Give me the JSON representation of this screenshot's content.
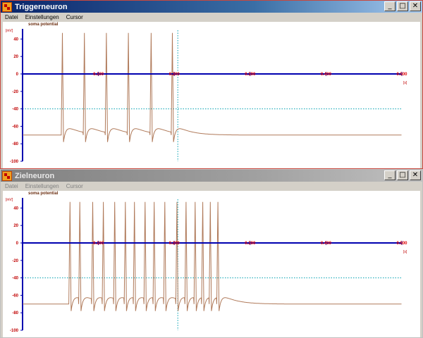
{
  "colors": {
    "trace": "#b07a5a",
    "axis": "#0000b0",
    "guide": "#00a0b0",
    "tick_text": "#d00000"
  },
  "menu": {
    "datei": "Datei",
    "einstellungen": "Einstellungen",
    "cursor": "Cursor"
  },
  "window_controls": {
    "minimize": "_",
    "maximize": "□",
    "close": "✕"
  },
  "windows": [
    {
      "title": "Triggerneuron",
      "active": true,
      "chart_data": {
        "type": "line",
        "series_label": "soma potential",
        "ylabel": "[mV]",
        "xlabel": "[s]",
        "y_ticks": [
          "40",
          "20",
          "0",
          "-20",
          "-40",
          "-60",
          "-80",
          "-100"
        ],
        "x_ticks": [
          "0.100",
          "0.200",
          "0.300",
          "0.400",
          "0.500"
        ],
        "ylim": [
          -100,
          50
        ],
        "xlim": [
          0,
          0.5
        ],
        "resting_potential": -70,
        "spike_peak": 47,
        "spike_times": [
          0.051,
          0.08,
          0.109,
          0.138,
          0.168,
          0.196
        ],
        "threshold_line": -40,
        "cursor_x": 0.2
      }
    },
    {
      "title": "Zielneuron",
      "active": false,
      "chart_data": {
        "type": "line",
        "series_label": "soma potential",
        "ylabel": "[mV]",
        "xlabel": "[s]",
        "y_ticks": [
          "40",
          "20",
          "0",
          "-20",
          "-40",
          "-60",
          "-80",
          "-100"
        ],
        "x_ticks": [
          "0.100",
          "0.200",
          "0.300",
          "0.400",
          "0.500"
        ],
        "ylim": [
          -100,
          50
        ],
        "xlim": [
          0,
          0.5
        ],
        "resting_potential": -70,
        "spike_peak": 47,
        "spike_times": [
          0.061,
          0.074,
          0.091,
          0.105,
          0.12,
          0.134,
          0.146,
          0.16,
          0.172,
          0.186,
          0.202,
          0.214,
          0.226,
          0.236,
          0.246,
          0.256
        ],
        "threshold_line": -40,
        "cursor_x": 0.2
      }
    }
  ]
}
